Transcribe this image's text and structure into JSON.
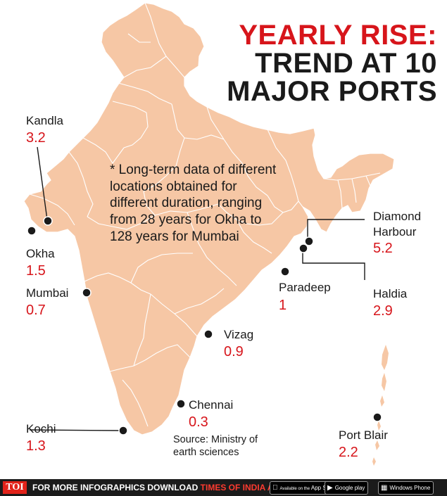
{
  "title": {
    "line1": "YEARLY RISE:",
    "line2": "TREND AT 10",
    "line3": "MAJOR PORTS"
  },
  "note": "* Long-term data of different locations obtained for different duration, ranging from 28 years for Okha to 128 years for Mumbai",
  "source": "Source: Ministry of earth sciences",
  "ports": [
    {
      "name": "Kandla",
      "value": "3.2"
    },
    {
      "name": "Okha",
      "value": "1.5"
    },
    {
      "name": "Mumbai",
      "value": "0.7"
    },
    {
      "name": "Kochi",
      "value": "1.3"
    },
    {
      "name": "Chennai",
      "value": "0.3"
    },
    {
      "name": "Vizag",
      "value": "0.9"
    },
    {
      "name": "Paradeep",
      "value": "1"
    },
    {
      "name": "Diamond Harbour",
      "value": "5.2"
    },
    {
      "name": "Haldia",
      "value": "2.9"
    },
    {
      "name": "Port Blair",
      "value": "2.2"
    }
  ],
  "footer": {
    "brand": "TOI",
    "text_prefix": "FOR MORE  INFOGRAPHICS DOWNLOAD ",
    "text_app": "TIMES OF INDIA  APP",
    "badge_appstore_small": "Available on the",
    "badge_appstore": "App Store",
    "badge_google": "Google play",
    "badge_windows": "Windows Phone"
  },
  "colors": {
    "land": "#f6c7a5",
    "border": "#ffffff",
    "accent": "#d7151b",
    "text": "#1a1a1a",
    "footer_bg": "#1b1b1b"
  },
  "icons": [
    "port-marker-icon",
    "apple-icon",
    "google-play-icon",
    "windows-icon"
  ]
}
